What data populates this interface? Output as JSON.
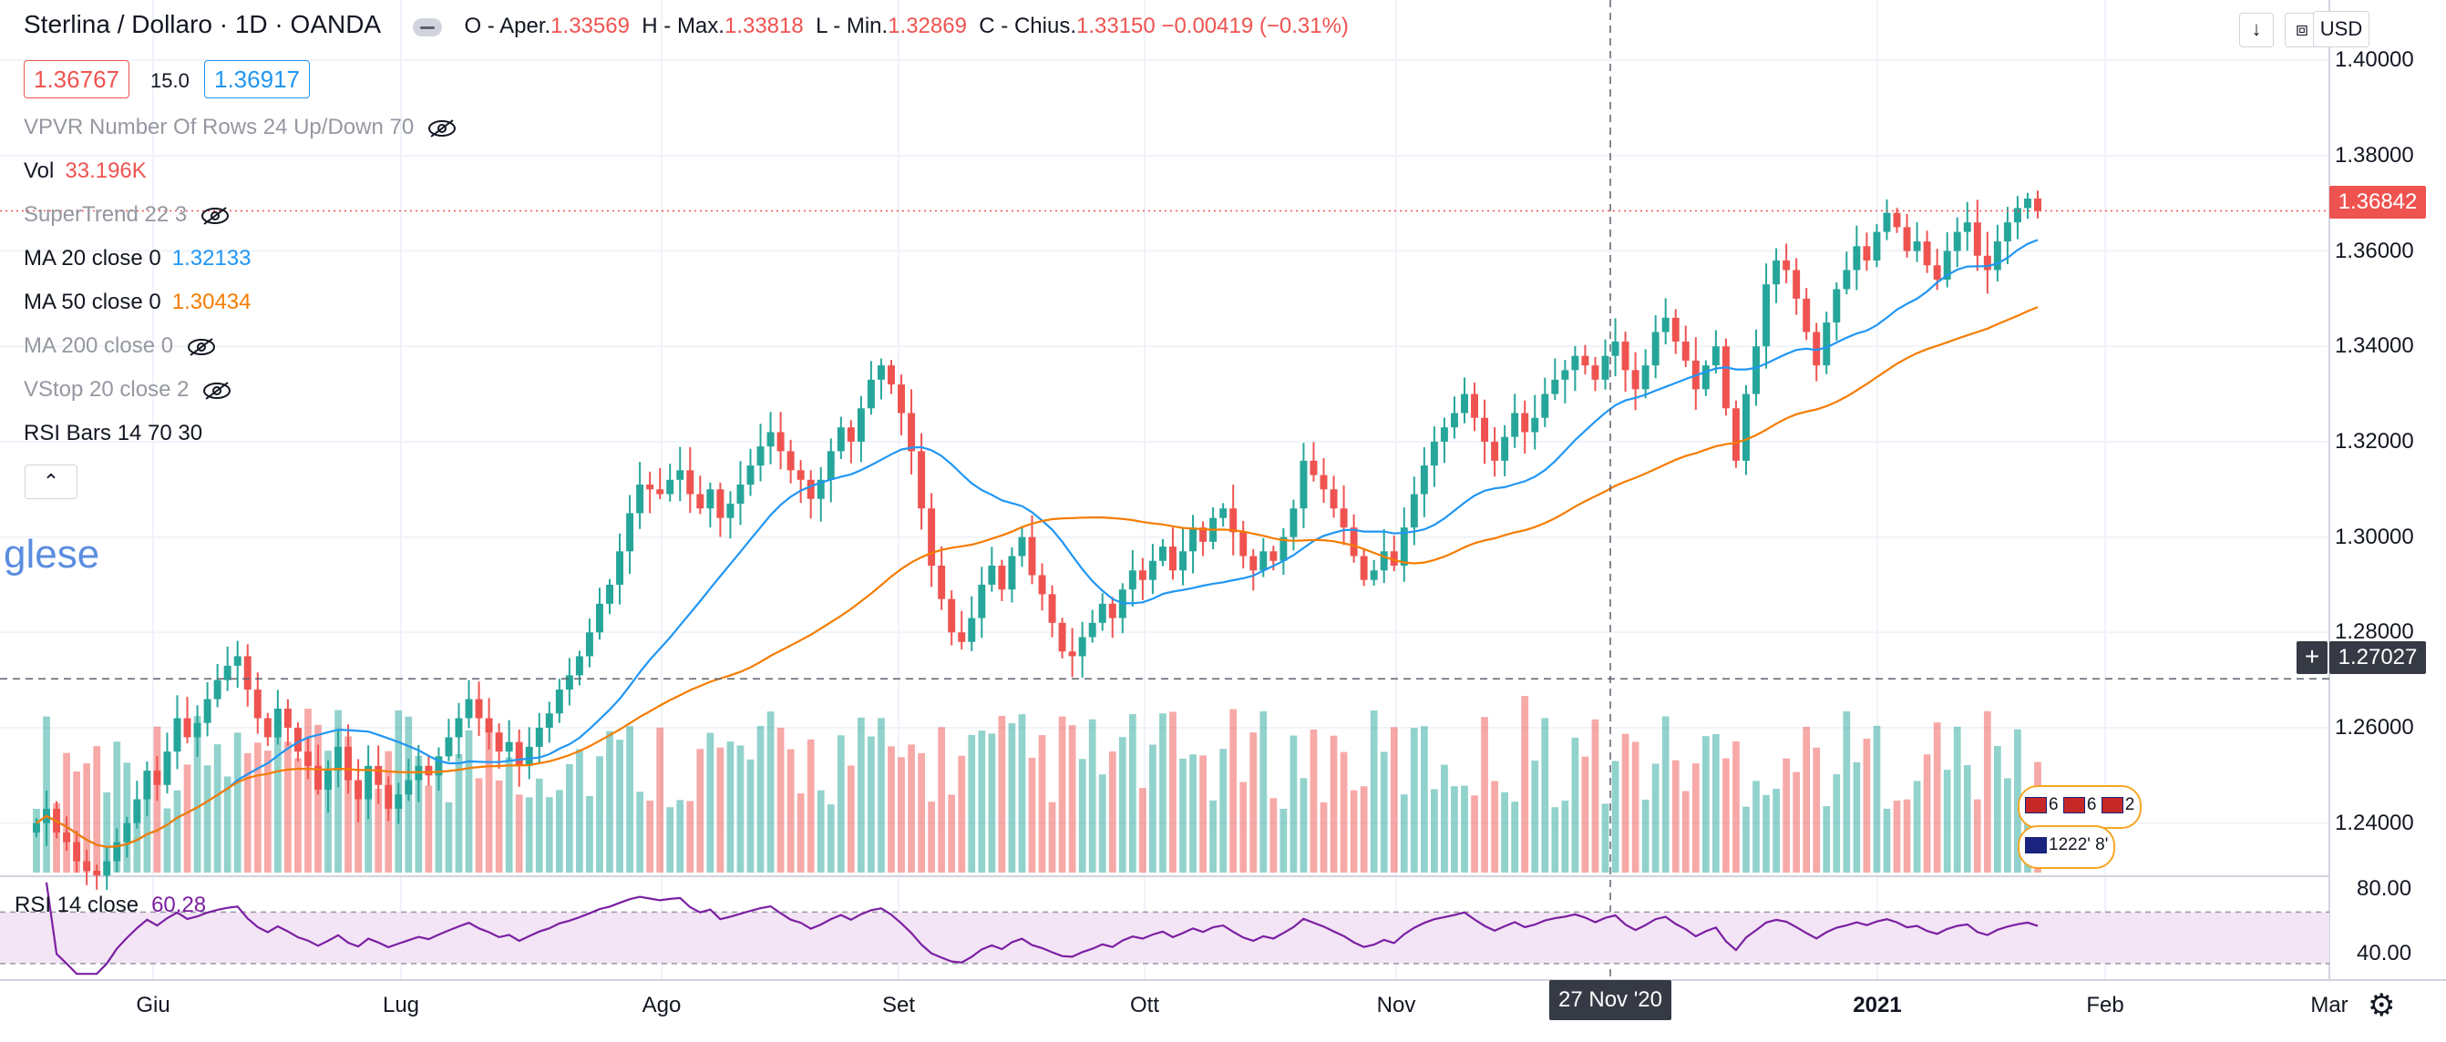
{
  "header": {
    "symbol_title": "Sterlina / Dollaro · 1D · OANDA",
    "ohlc": {
      "o_label": "O - Aper.",
      "o_val": "1.33569",
      "h_label": "H - Max.",
      "h_val": "1.33818",
      "l_label": "L - Min.",
      "l_val": "1.32869",
      "c_label": "C - Chius.",
      "c_val": "1.33150",
      "change": "−0.00419 (−0.31%)"
    },
    "bid": "1.36767",
    "spread": "15.0",
    "ask": "1.36917",
    "currency_button": "USD"
  },
  "indicators": [
    {
      "label": "VPVR Number Of Rows 24 Up/Down 70",
      "value": "",
      "hidden": true
    },
    {
      "label": "Vol",
      "value": "33.196K",
      "value_color": "#ef5350",
      "hidden": false
    },
    {
      "label": "SuperTrend 22 3",
      "value": "",
      "hidden": true
    },
    {
      "label": "MA 20 close 0",
      "value": "1.32133",
      "value_color": "#2196f3",
      "hidden": false
    },
    {
      "label": "MA 50 close 0",
      "value": "1.30434",
      "value_color": "#f57c00",
      "hidden": false
    },
    {
      "label": "MA 200 close 0",
      "value": "",
      "hidden": true
    },
    {
      "label": "VStop 20 close 2",
      "value": "",
      "hidden": true
    },
    {
      "label": "RSI Bars 14 70 30",
      "value": "",
      "hidden": false
    }
  ],
  "watermark": "glese",
  "price_axis": [
    "1.40000",
    "1.38000",
    "1.36000",
    "1.34000",
    "1.32000",
    "1.30000",
    "1.28000",
    "1.26000",
    "1.24000"
  ],
  "last_price": "1.36842",
  "crosshair_price": "1.27027",
  "crosshair_date": "27 Nov '20",
  "time_axis": [
    "Giu",
    "Lug",
    "Ago",
    "Set",
    "Ott",
    "Nov",
    "2021",
    "Feb",
    "Mar"
  ],
  "rsi": {
    "label": "RSI 14 close",
    "value": "60.28",
    "ticks": [
      "80.00",
      "40.00"
    ]
  },
  "events": {
    "row1": [
      "6",
      "6",
      "2"
    ],
    "row2": "1222' 8'"
  },
  "colors": {
    "up": "#26a69a",
    "down": "#ef5350",
    "ma20": "#2196f3",
    "ma50": "#f57c00",
    "rsi": "#7b1fa2",
    "rsi_band": "#f3e5f5"
  },
  "chart_data": {
    "type": "candlestick",
    "title": "Sterlina / Dollaro · 1D · OANDA",
    "ylim": [
      1.23,
      1.405
    ],
    "y_ticks": [
      1.4,
      1.38,
      1.36,
      1.34,
      1.32,
      1.3,
      1.28,
      1.26,
      1.24
    ],
    "x_ticks": [
      "Giu",
      "Lug",
      "Ago",
      "Set",
      "Ott",
      "Nov",
      "2021",
      "Feb",
      "Mar"
    ],
    "close": [
      1.24,
      1.243,
      1.238,
      1.236,
      1.232,
      1.23,
      1.229,
      1.232,
      1.236,
      1.24,
      1.245,
      1.251,
      1.248,
      1.255,
      1.262,
      1.258,
      1.261,
      1.266,
      1.27,
      1.273,
      1.275,
      1.268,
      1.262,
      1.258,
      1.264,
      1.26,
      1.255,
      1.252,
      1.247,
      1.251,
      1.256,
      1.249,
      1.245,
      1.252,
      1.248,
      1.243,
      1.246,
      1.249,
      1.252,
      1.25,
      1.254,
      1.258,
      1.262,
      1.266,
      1.262,
      1.259,
      1.255,
      1.257,
      1.252,
      1.256,
      1.26,
      1.263,
      1.268,
      1.271,
      1.275,
      1.28,
      1.286,
      1.29,
      1.297,
      1.305,
      1.311,
      1.31,
      1.309,
      1.312,
      1.314,
      1.309,
      1.306,
      1.31,
      1.304,
      1.307,
      1.311,
      1.315,
      1.319,
      1.322,
      1.318,
      1.314,
      1.312,
      1.308,
      1.312,
      1.318,
      1.323,
      1.32,
      1.327,
      1.333,
      1.336,
      1.332,
      1.326,
      1.318,
      1.306,
      1.294,
      1.287,
      1.28,
      1.278,
      1.283,
      1.29,
      1.294,
      1.289,
      1.296,
      1.3,
      1.292,
      1.288,
      1.282,
      1.276,
      1.275,
      1.279,
      1.282,
      1.286,
      1.283,
      1.289,
      1.293,
      1.291,
      1.295,
      1.298,
      1.293,
      1.297,
      1.302,
      1.299,
      1.304,
      1.306,
      1.301,
      1.296,
      1.293,
      1.297,
      1.295,
      1.3,
      1.306,
      1.316,
      1.313,
      1.31,
      1.306,
      1.302,
      1.296,
      1.291,
      1.293,
      1.297,
      1.294,
      1.302,
      1.309,
      1.315,
      1.32,
      1.323,
      1.326,
      1.33,
      1.325,
      1.32,
      1.316,
      1.321,
      1.326,
      1.322,
      1.325,
      1.33,
      1.333,
      1.335,
      1.338,
      1.336,
      1.333,
      1.338,
      1.341,
      1.335,
      1.331,
      1.336,
      1.343,
      1.346,
      1.341,
      1.337,
      1.331,
      1.336,
      1.34,
      1.327,
      1.316,
      1.33,
      1.34,
      1.353,
      1.358,
      1.356,
      1.35,
      1.343,
      1.336,
      1.345,
      1.352,
      1.356,
      1.361,
      1.358,
      1.364,
      1.368,
      1.365,
      1.36,
      1.362,
      1.357,
      1.354,
      1.36,
      1.364,
      1.366,
      1.359,
      1.356,
      1.362,
      1.366,
      1.369,
      1.371,
      1.3684
    ],
    "ma20": "computed from close",
    "ma50": "computed from close",
    "volume_panel": "bars under price, colored by candle direction",
    "rsi_ylim": [
      20,
      95
    ],
    "rsi_levels": [
      70,
      30
    ]
  }
}
